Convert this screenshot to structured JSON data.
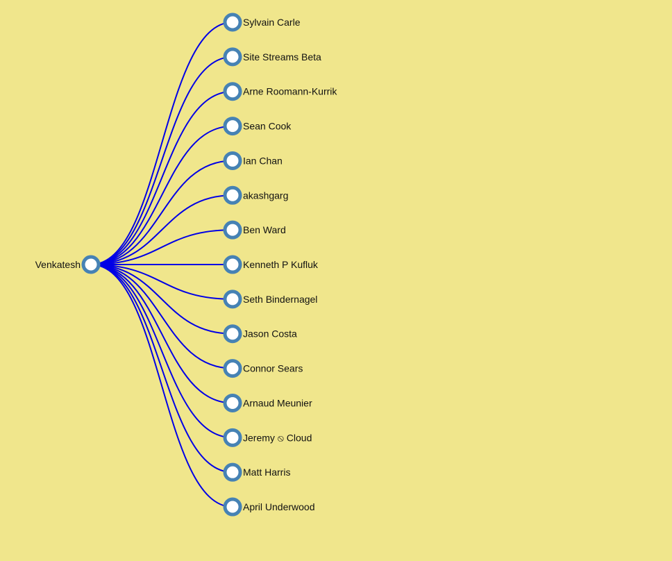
{
  "tree": {
    "root": {
      "name": "Venkatesh"
    },
    "children": [
      {
        "name": "Sylvain Carle"
      },
      {
        "name": "Site Streams Beta"
      },
      {
        "name": "Arne Roomann-Kurrik"
      },
      {
        "name": "Sean Cook"
      },
      {
        "name": "Ian Chan"
      },
      {
        "name": "akashgarg"
      },
      {
        "name": "Ben Ward"
      },
      {
        "name": "Kenneth P Kufluk"
      },
      {
        "name": "Seth Bindernagel"
      },
      {
        "name": "Jason Costa"
      },
      {
        "name": "Connor Sears"
      },
      {
        "name": "Arnaud Meunier"
      },
      {
        "name": "Jeremy ⦸ Cloud"
      },
      {
        "name": "Matt Harris"
      },
      {
        "name": "April Underwood"
      }
    ]
  },
  "colors": {
    "background": "#f0e68c",
    "link": "#0000e6",
    "node_stroke": "#4682b4",
    "node_fill": "#ffffff"
  }
}
